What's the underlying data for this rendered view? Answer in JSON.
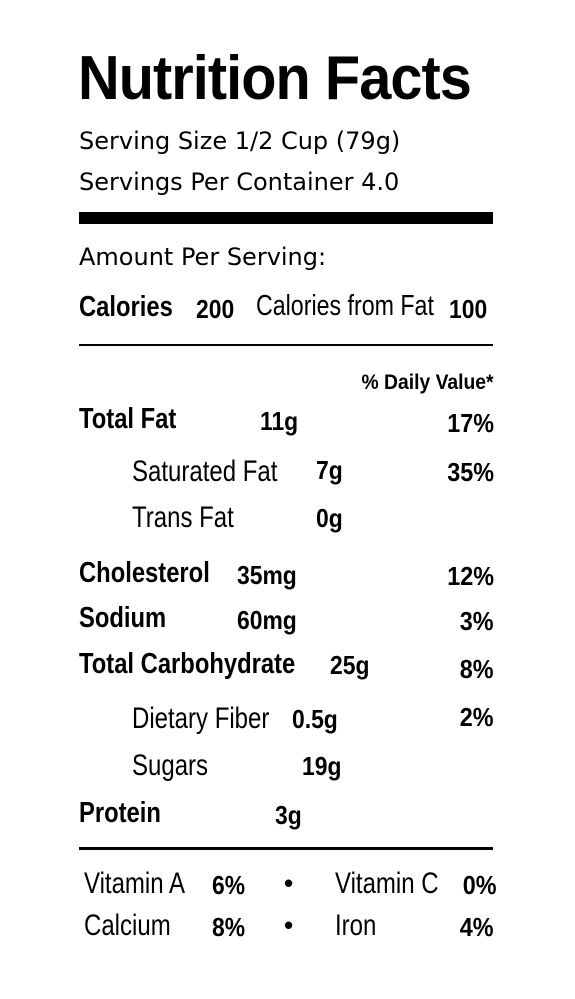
{
  "title": "Nutrition Facts",
  "serving_size": "Serving Size 1/2 Cup (79g)",
  "servings_per_container": "Servings Per Container 4.0",
  "amount_per_serving": "Amount Per Serving:",
  "calories": {
    "label": "Calories",
    "value": "200"
  },
  "calories_from_fat": {
    "label": "Calories from Fat",
    "value": "100"
  },
  "daily_value_header": "% Daily Value*",
  "nutrients": {
    "total_fat": {
      "label": "Total Fat",
      "amount": "11g",
      "dv": "17%"
    },
    "saturated_fat": {
      "label": "Saturated Fat",
      "amount": "7g",
      "dv": "35%"
    },
    "trans_fat": {
      "label": "Trans Fat",
      "amount": "0g"
    },
    "cholesterol": {
      "label": "Cholesterol",
      "amount": "35mg",
      "dv": "12%"
    },
    "sodium": {
      "label": "Sodium",
      "amount": "60mg",
      "dv": "3%"
    },
    "total_carbohydrate": {
      "label": "Total Carbohydrate",
      "amount": "25g",
      "dv": "8%"
    },
    "dietary_fiber": {
      "label": "Dietary Fiber",
      "amount": "0.5g",
      "dv": "2%"
    },
    "sugars": {
      "label": "Sugars",
      "amount": "19g"
    },
    "protein": {
      "label": "Protein",
      "amount": "3g"
    }
  },
  "vitamins": {
    "vitamin_a": {
      "label": "Vitamin A",
      "value": "6%"
    },
    "vitamin_c": {
      "label": "Vitamin C",
      "value": "0%"
    },
    "calcium": {
      "label": "Calcium",
      "value": "8%"
    },
    "iron": {
      "label": "Iron",
      "value": "4%"
    },
    "separator": "•"
  }
}
